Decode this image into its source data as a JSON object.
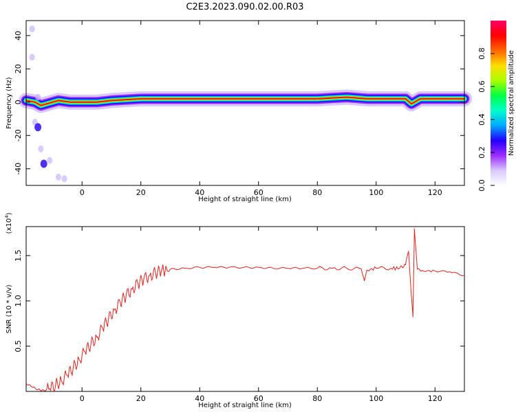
{
  "title": "C2E3.2023.090.02.00.R03",
  "chart_data": [
    {
      "type": "heatmap",
      "xlabel": "Height of straight line (km)",
      "ylabel": "Frequency (Hz)",
      "xlim": [
        -19,
        130
      ],
      "ylim": [
        -50,
        49
      ],
      "xticks": [
        0,
        20,
        40,
        60,
        80,
        100,
        120
      ],
      "yticks": [
        -40,
        -20,
        0,
        20,
        40
      ],
      "colorbar": {
        "label": "Normalized spectral amplitude",
        "range": [
          0,
          1
        ],
        "ticks": [
          "0.0",
          "0.2",
          "0.4",
          "0.6",
          "0.8"
        ],
        "colormap": [
          "#ffffff",
          "#d8c8ff",
          "#9b2cff",
          "#2200ff",
          "#00aaff",
          "#00ffcc",
          "#00ff44",
          "#aaff00",
          "#ffdd00",
          "#ff6600",
          "#ff0000",
          "#ff0066"
        ]
      },
      "ridge": {
        "description_values": "dominant frequency ridge near 2 Hz",
        "points": [
          [
            -19,
            1
          ],
          [
            -16,
            0
          ],
          [
            -14,
            -2
          ],
          [
            -12,
            -1
          ],
          [
            -8,
            1
          ],
          [
            -4,
            0
          ],
          [
            0,
            0
          ],
          [
            5,
            0
          ],
          [
            10,
            1
          ],
          [
            20,
            2
          ],
          [
            40,
            2
          ],
          [
            70,
            2
          ],
          [
            80,
            2
          ],
          [
            90,
            3
          ],
          [
            97,
            2
          ],
          [
            110,
            2
          ],
          [
            112,
            -1
          ],
          [
            115,
            2
          ],
          [
            130,
            2
          ]
        ]
      },
      "scatter_blobs": [
        [
          -17,
          44
        ],
        [
          -17,
          27
        ],
        [
          -15,
          3
        ],
        [
          -16,
          -12
        ],
        [
          -15,
          -15
        ],
        [
          -14,
          -28
        ],
        [
          -13,
          -37
        ],
        [
          -11,
          -35
        ],
        [
          -8,
          -45
        ],
        [
          -6,
          -46
        ]
      ]
    },
    {
      "type": "line",
      "xlabel": "Height of straight line (km)",
      "ylabel": "SNR (10 * v/v)",
      "yunit_label": "(x10",
      "yunit_exp": "4",
      "yunit_close": ")",
      "xlim": [
        -19,
        130
      ],
      "ylim": [
        0.0,
        1.82
      ],
      "xticks": [
        0,
        20,
        40,
        60,
        80,
        100,
        120
      ],
      "yticks": [
        "0.5",
        "1.0",
        "1.5"
      ],
      "ytick_values": [
        0.5,
        1.0,
        1.5
      ],
      "line_color": "#e0211c",
      "series": [
        {
          "x": [
            -19,
            -17,
            -15,
            -13,
            -11,
            -9,
            -7,
            -5,
            -3,
            -1,
            1,
            3,
            5,
            7,
            9,
            11,
            13,
            15,
            17,
            19,
            21,
            23,
            25,
            27,
            30,
            35,
            40,
            45,
            50,
            55,
            60,
            65,
            70,
            75,
            80,
            85,
            90,
            95,
            96,
            97,
            100,
            105,
            108,
            110,
            111,
            112,
            112.5,
            113,
            114,
            116,
            120,
            125,
            130
          ],
          "values": [
            0.09,
            0.05,
            0.02,
            0.01,
            0.03,
            0.07,
            0.12,
            0.18,
            0.26,
            0.35,
            0.44,
            0.52,
            0.6,
            0.7,
            0.8,
            0.9,
            0.98,
            1.06,
            1.13,
            1.19,
            1.24,
            1.28,
            1.31,
            1.33,
            1.35,
            1.36,
            1.37,
            1.37,
            1.37,
            1.37,
            1.37,
            1.36,
            1.36,
            1.36,
            1.36,
            1.36,
            1.36,
            1.35,
            1.22,
            1.34,
            1.36,
            1.36,
            1.36,
            1.4,
            1.55,
            1.05,
            0.82,
            1.8,
            1.35,
            1.33,
            1.33,
            1.32,
            1.28
          ]
        }
      ]
    }
  ]
}
